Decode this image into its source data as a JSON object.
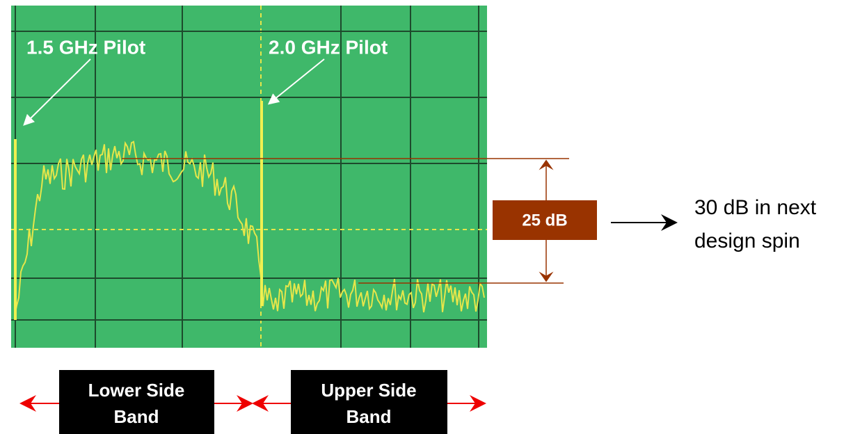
{
  "labels": {
    "pilot_1": "1.5 GHz Pilot",
    "pilot_2": "2.0 GHz Pilot",
    "measure": "25 dB",
    "note": [
      "30 dB in next",
      "design spin"
    ],
    "lower_band": [
      "Lower Side",
      "Band"
    ],
    "upper_band": [
      "Upper Side",
      "Band"
    ]
  }
}
